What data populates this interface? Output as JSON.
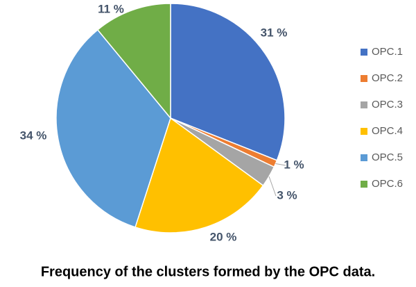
{
  "chart_data": {
    "type": "pie",
    "title": "Frequency of the clusters formed by the OPC data.",
    "categories": [
      "OPC.1",
      "OPC.2",
      "OPC.3",
      "OPC.4",
      "OPC.5",
      "OPC.6"
    ],
    "values": [
      31,
      1,
      3,
      20,
      34,
      11
    ],
    "value_labels": [
      "31 %",
      "1 %",
      "3 %",
      "20 %",
      "34 %",
      "11 %"
    ],
    "colors": [
      "#4472c4",
      "#ed7d31",
      "#a5a5a5",
      "#ffc000",
      "#5b9bd5",
      "#70ad47"
    ],
    "legend": "right"
  }
}
